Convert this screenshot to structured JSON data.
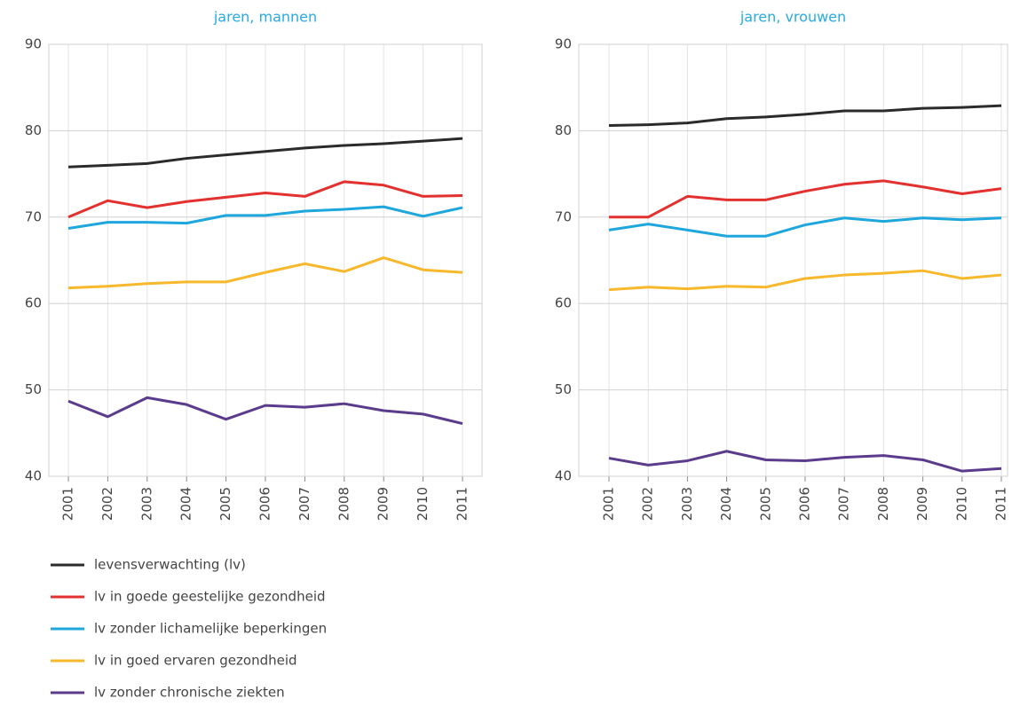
{
  "chart_data": [
    {
      "type": "line",
      "title": "jaren, mannen",
      "categories": [
        "2001",
        "2002",
        "2003",
        "2004",
        "2005",
        "2006",
        "2007",
        "2008",
        "2009",
        "2010",
        "2011"
      ],
      "ylim": [
        40,
        90
      ],
      "yticks": [
        40,
        50,
        60,
        70,
        80,
        90
      ],
      "grid": true,
      "series": [
        {
          "name": "levensverwachting (lv)",
          "color": "#2b2b2b",
          "values": [
            75.8,
            76.0,
            76.2,
            76.8,
            77.2,
            77.6,
            78.0,
            78.3,
            78.5,
            78.8,
            79.1
          ]
        },
        {
          "name": "lv in goede geestelijke gezondheid",
          "color": "#e2312f",
          "values": [
            70.0,
            71.9,
            71.1,
            71.8,
            72.3,
            72.8,
            72.4,
            74.1,
            73.7,
            72.4,
            72.5
          ]
        },
        {
          "name": "lv zonder lichamelijke beperkingen",
          "color": "#1ea7dd",
          "values": [
            68.7,
            69.4,
            69.4,
            69.3,
            70.2,
            70.2,
            70.7,
            70.9,
            71.2,
            70.1,
            71.1
          ]
        },
        {
          "name": "lv in goed ervaren gezondheid",
          "color": "#f7b82b",
          "values": [
            61.8,
            62.0,
            62.3,
            62.5,
            62.5,
            63.6,
            64.6,
            63.7,
            65.3,
            63.9,
            63.6
          ]
        },
        {
          "name": "lv zonder chronische ziekten",
          "color": "#5b3b8c",
          "values": [
            48.7,
            46.9,
            49.1,
            48.3,
            46.6,
            48.2,
            48.0,
            48.4,
            47.6,
            47.2,
            46.1
          ]
        }
      ]
    },
    {
      "type": "line",
      "title": "jaren, vrouwen",
      "categories": [
        "2001",
        "2002",
        "2003",
        "2004",
        "2005",
        "2006",
        "2007",
        "2008",
        "2009",
        "2010",
        "2011"
      ],
      "ylim": [
        40,
        90
      ],
      "yticks": [
        40,
        50,
        60,
        70,
        80,
        90
      ],
      "grid": true,
      "series": [
        {
          "color": "#2b2b2b",
          "values": [
            80.6,
            80.7,
            80.9,
            81.4,
            81.6,
            81.9,
            82.3,
            82.3,
            82.6,
            82.7,
            82.9
          ]
        },
        {
          "color": "#e2312f",
          "values": [
            70.0,
            70.0,
            72.4,
            72.0,
            72.0,
            73.0,
            73.8,
            74.2,
            73.5,
            72.7,
            73.3
          ]
        },
        {
          "color": "#1ea7dd",
          "values": [
            68.5,
            69.2,
            68.5,
            67.8,
            67.8,
            69.1,
            69.9,
            69.5,
            69.9,
            69.7,
            69.9
          ]
        },
        {
          "color": "#f7b82b",
          "values": [
            61.6,
            61.9,
            61.7,
            62.0,
            61.9,
            62.9,
            63.3,
            63.5,
            63.8,
            62.9,
            63.3
          ]
        },
        {
          "color": "#5b3b8c",
          "values": [
            42.1,
            41.3,
            41.8,
            42.9,
            41.9,
            41.8,
            42.2,
            42.4,
            41.9,
            40.6,
            40.9
          ]
        }
      ]
    }
  ]
}
